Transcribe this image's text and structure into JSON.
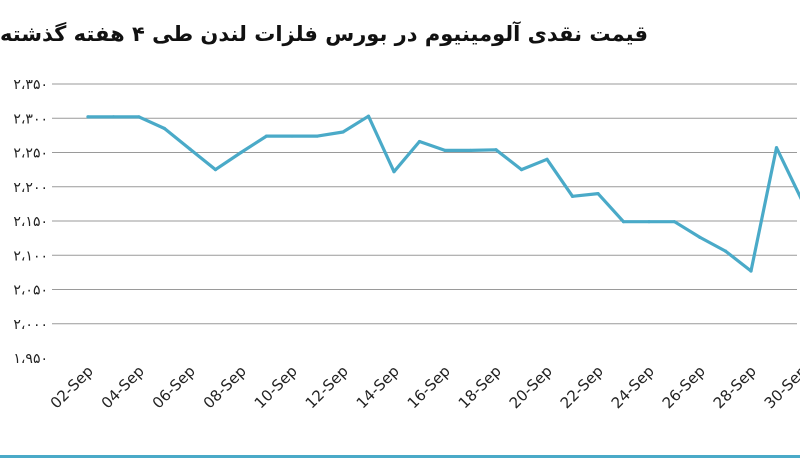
{
  "chart_data": {
    "type": "line",
    "title": "قیمت نقدی آلومینیوم در بورس فلزات لندن طی ۴ هفته گذشته",
    "xlabel": "",
    "ylabel": "",
    "ylim": [
      1950,
      2350
    ],
    "y_ticks": [
      1950,
      2000,
      2050,
      2100,
      2150,
      2200,
      2250,
      2300,
      2350
    ],
    "y_tick_labels": [
      "۱،۹۵۰",
      "۲،۰۰۰",
      "۲،۰۵۰",
      "۲،۱۰۰",
      "۲،۱۵۰",
      "۲،۲۰۰",
      "۲،۲۵۰",
      "۲،۳۰۰",
      "۲،۳۵۰"
    ],
    "x_tick_labels": [
      "02-Sep",
      "04-Sep",
      "06-Sep",
      "08-Sep",
      "10-Sep",
      "12-Sep",
      "14-Sep",
      "16-Sep",
      "18-Sep",
      "20-Sep",
      "22-Sep",
      "24-Sep",
      "26-Sep",
      "28-Sep",
      "30-Sep"
    ],
    "grid": true,
    "legend": "none",
    "series": [
      {
        "color": "#4aaac8",
        "points": [
          {
            "x": "02-Sep",
            "y": 2302
          },
          {
            "x": "03-Sep",
            "y": 2302
          },
          {
            "x": "04-Sep",
            "y": 2302
          },
          {
            "x": "05-Sep",
            "y": 2285
          },
          {
            "x": "06-Sep",
            "y": 2255
          },
          {
            "x": "07-Sep",
            "y": 2225
          },
          {
            "x": "08-Sep",
            "y": 2250
          },
          {
            "x": "09-Sep",
            "y": 2274
          },
          {
            "x": "10-Sep",
            "y": 2274
          },
          {
            "x": "11-Sep",
            "y": 2274
          },
          {
            "x": "12-Sep",
            "y": 2280
          },
          {
            "x": "13-Sep",
            "y": 2303
          },
          {
            "x": "14-Sep",
            "y": 2222
          },
          {
            "x": "15-Sep",
            "y": 2266
          },
          {
            "x": "16-Sep",
            "y": 2253
          },
          {
            "x": "17-Sep",
            "y": 2253
          },
          {
            "x": "18-Sep",
            "y": 2254
          },
          {
            "x": "19-Sep",
            "y": 2225
          },
          {
            "x": "20-Sep",
            "y": 2240
          },
          {
            "x": "21-Sep",
            "y": 2186
          },
          {
            "x": "22-Sep",
            "y": 2190
          },
          {
            "x": "23-Sep",
            "y": 2149
          },
          {
            "x": "24-Sep",
            "y": 2149
          },
          {
            "x": "25-Sep",
            "y": 2149
          },
          {
            "x": "26-Sep",
            "y": 2126
          },
          {
            "x": "27-Sep",
            "y": 2106
          },
          {
            "x": "28-Sep",
            "y": 2077
          },
          {
            "x": "29-Sep",
            "y": 2257
          },
          {
            "x": "30-Sep",
            "y": 2180
          }
        ]
      }
    ]
  },
  "style": {
    "bottom_border_color": "#4aaac8"
  }
}
